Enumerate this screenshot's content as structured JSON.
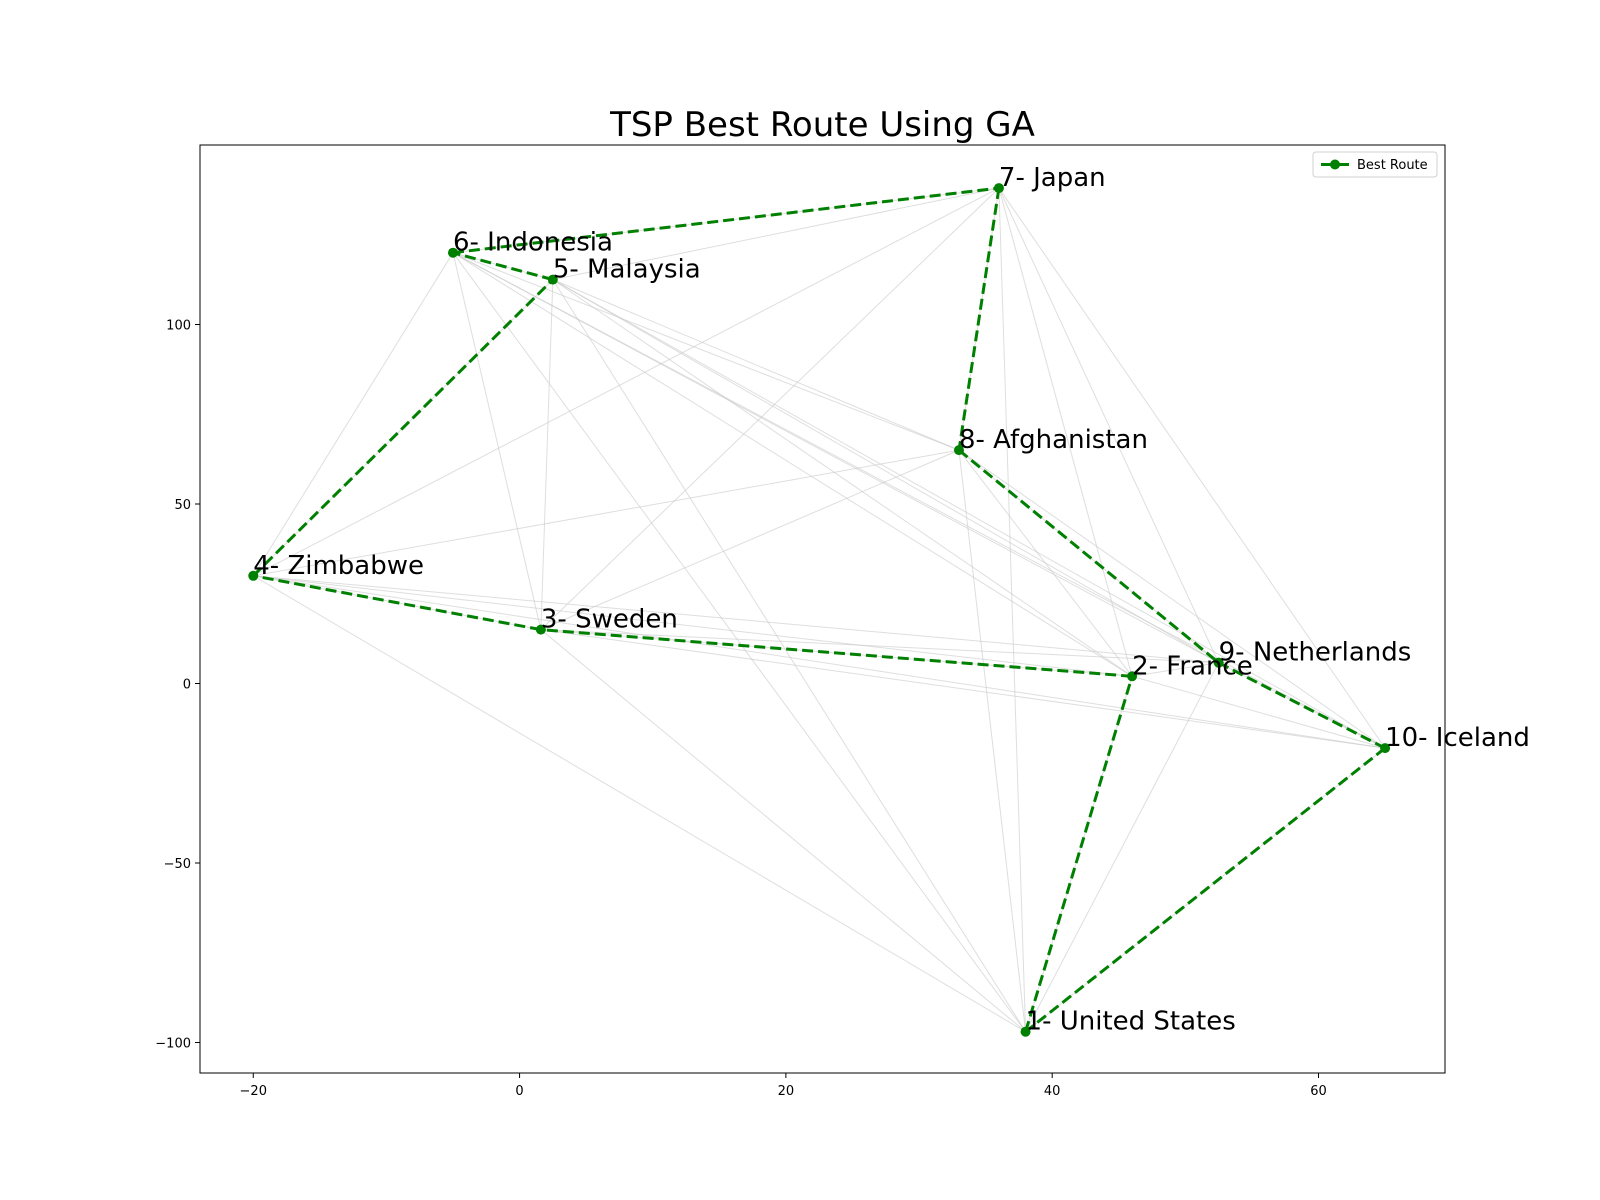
{
  "chart_data": {
    "type": "scatter",
    "title": "TSP Best Route Using GA",
    "xlabel": "",
    "ylabel": "",
    "xlim": [
      -24,
      69.5
    ],
    "ylim": [
      -108.5,
      150
    ],
    "xticks": [
      -20,
      0,
      20,
      40,
      60
    ],
    "yticks": [
      100,
      50,
      0,
      -50,
      -100
    ],
    "grid": false,
    "legend": {
      "position": "top-right",
      "entries": [
        {
          "label": "Best Route",
          "color": "#008000"
        }
      ]
    },
    "cities": [
      {
        "label": "1- United States",
        "x": 38.0,
        "y": -97.0
      },
      {
        "label": "2- France",
        "x": 46.0,
        "y": 2.0
      },
      {
        "label": "3- Sweden",
        "x": 1.6,
        "y": 15.0
      },
      {
        "label": "4- Zimbabwe",
        "x": -20.0,
        "y": 30.0
      },
      {
        "label": "5- Malaysia",
        "x": 2.5,
        "y": 112.5
      },
      {
        "label": "6- Indonesia",
        "x": -5.0,
        "y": 120.0
      },
      {
        "label": "7- Japan",
        "x": 36.0,
        "y": 138.0
      },
      {
        "label": "8- Afghanistan",
        "x": 33.0,
        "y": 65.0
      },
      {
        "label": "9- Netherlands",
        "x": 52.5,
        "y": 5.8
      },
      {
        "label": "10- Iceland",
        "x": 65.0,
        "y": -18.0
      }
    ],
    "series": [
      {
        "name": "Best Route",
        "color": "#008000",
        "line_style": "dashed",
        "marker": "circle",
        "route": [
          1,
          2,
          3,
          4,
          5,
          6,
          7,
          8,
          9,
          10,
          1
        ]
      }
    ],
    "background_edges_color": "#c8c8c8"
  }
}
